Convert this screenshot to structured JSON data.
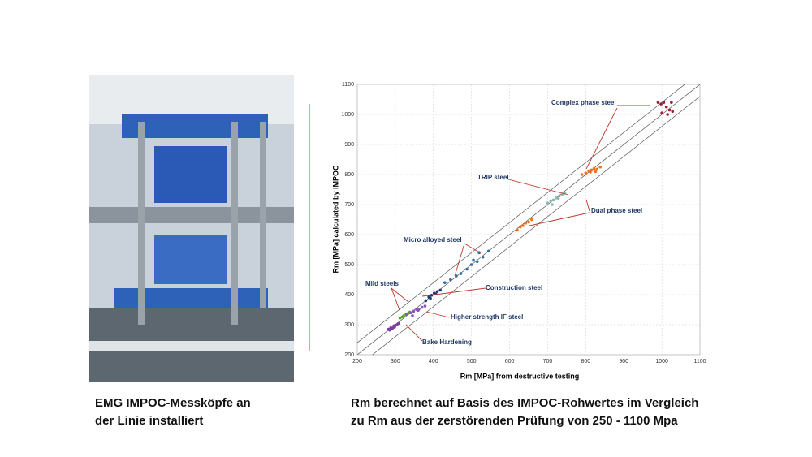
{
  "chart_data": {
    "type": "scatter",
    "label": "Rm",
    "x_label": "Rm [MPa]  from destructive testing",
    "y_label": "Rm [MPa]  calculated by  IMPOC",
    "xlim": [
      200,
      1100
    ],
    "ylim": [
      200,
      1100
    ],
    "xticks": [
      200,
      300,
      400,
      500,
      600,
      700,
      800,
      900,
      1000,
      1100
    ],
    "yticks": [
      200,
      300,
      400,
      500,
      600,
      700,
      800,
      900,
      1000,
      1100
    ],
    "grid": true,
    "reference_offsets": [
      -40,
      0,
      40
    ],
    "series": [
      {
        "name": "Bake Hardening",
        "color": "#7a3f9d",
        "x": [
          282,
          288,
          292,
          296,
          300,
          304,
          308,
          285,
          298
        ],
        "values": [
          285,
          290,
          288,
          296,
          298,
          300,
          304,
          282,
          292
        ]
      },
      {
        "name": "Higher strength IF steel",
        "color": "#5aa832",
        "x": [
          312,
          318,
          322,
          328,
          334,
          338
        ],
        "values": [
          322,
          326,
          330,
          334,
          338,
          342
        ]
      },
      {
        "name": "Mild steels",
        "color": "#8a58b8",
        "x": [
          330,
          340,
          348,
          356,
          362,
          370,
          378,
          345,
          360
        ],
        "values": [
          335,
          340,
          345,
          350,
          352,
          358,
          362,
          330,
          348
        ]
      },
      {
        "name": "Construction steel",
        "color": "#1f3a78",
        "x": [
          380,
          388,
          395,
          402,
          410,
          418,
          392,
          406
        ],
        "values": [
          380,
          392,
          398,
          405,
          410,
          415,
          388,
          402
        ]
      },
      {
        "name": "Micro alloyed steel",
        "color": "#2e6fa8",
        "x": [
          430,
          445,
          460,
          472,
          488,
          500,
          515,
          530,
          545,
          520,
          505
        ],
        "values": [
          440,
          450,
          462,
          470,
          485,
          500,
          510,
          525,
          545,
          540,
          515
        ]
      },
      {
        "name": "Dual phase steel",
        "color": "#f07020",
        "x": [
          620,
          628,
          635,
          642,
          650,
          658,
          790,
          800,
          808,
          815,
          822,
          830,
          838,
          812,
          826
        ],
        "values": [
          615,
          625,
          630,
          638,
          642,
          650,
          800,
          805,
          812,
          815,
          820,
          818,
          825,
          808,
          810
        ]
      },
      {
        "name": "TRIP steel",
        "color": "#8fb8b0",
        "x": [
          700,
          708,
          715,
          722,
          730,
          738,
          745,
          712,
          728
        ],
        "values": [
          705,
          712,
          715,
          722,
          728,
          732,
          738,
          700,
          720
        ]
      },
      {
        "name": "Complex phase steel",
        "color": "#a0203a",
        "x": [
          990,
          998,
          1005,
          1012,
          1020,
          1028,
          1000,
          1015,
          1025
        ],
        "values": [
          1040,
          1035,
          1040,
          1025,
          1015,
          1010,
          1005,
          1000,
          1040
        ]
      }
    ]
  },
  "left_caption": [
    "EMG IMPOC-Messköpfe an",
    "der Linie installiert"
  ],
  "right_caption": [
    "Rm berechnet auf Basis des IMPOC-Rohwertes  im Vergleich",
    "zu Rm aus der zerstörenden Prüfung von 250 - 1100 Mpa"
  ]
}
